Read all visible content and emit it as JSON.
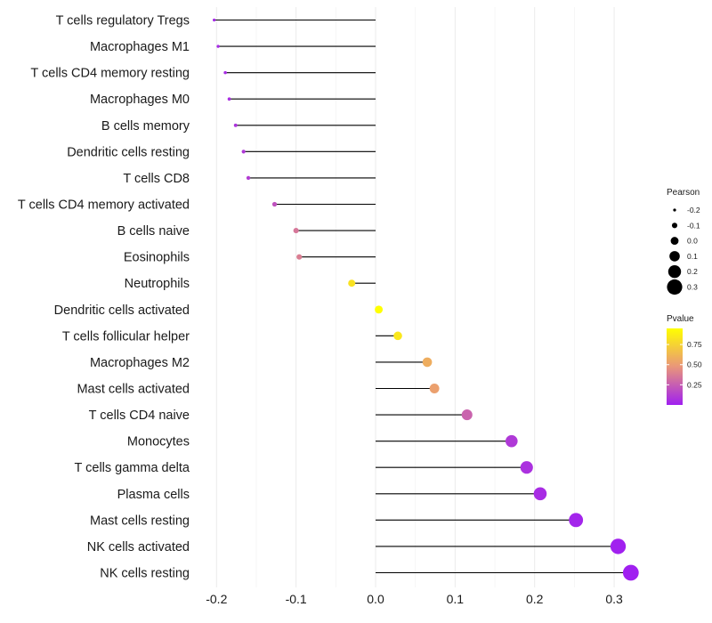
{
  "chart_data": {
    "type": "lollipop",
    "title": "",
    "xlabel": "",
    "ylabel": "",
    "xlim": [
      -0.22,
      0.355
    ],
    "x_ticks": [
      -0.2,
      -0.1,
      0.0,
      0.1,
      0.2,
      0.3
    ],
    "x_tick_labels": [
      "-0.2",
      "-0.1",
      "0.0",
      "0.1",
      "0.2",
      "0.3"
    ],
    "grid": true,
    "points": [
      {
        "category": "T cells regulatory  Tregs",
        "pearson": -0.203,
        "pvalue": 0.03
      },
      {
        "category": "Macrophages M1",
        "pearson": -0.198,
        "pvalue": 0.04
      },
      {
        "category": "T cells CD4 memory resting",
        "pearson": -0.189,
        "pvalue": 0.05
      },
      {
        "category": "Macrophages M0",
        "pearson": -0.184,
        "pvalue": 0.06
      },
      {
        "category": "B cells memory",
        "pearson": -0.176,
        "pvalue": 0.08
      },
      {
        "category": "Dendritic cells resting",
        "pearson": -0.166,
        "pvalue": 0.1
      },
      {
        "category": "T cells CD8",
        "pearson": -0.16,
        "pvalue": 0.12
      },
      {
        "category": "T cells CD4 memory activated",
        "pearson": -0.127,
        "pvalue": 0.2
      },
      {
        "category": "B cells naive",
        "pearson": -0.1,
        "pvalue": 0.35
      },
      {
        "category": "Eosinophils",
        "pearson": -0.096,
        "pvalue": 0.38
      },
      {
        "category": "Neutrophils",
        "pearson": -0.03,
        "pvalue": 0.82
      },
      {
        "category": "Dendritic cells activated",
        "pearson": 0.004,
        "pvalue": 0.97
      },
      {
        "category": "T cells follicular helper",
        "pearson": 0.028,
        "pvalue": 0.84
      },
      {
        "category": "Macrophages M2",
        "pearson": 0.065,
        "pvalue": 0.58
      },
      {
        "category": "Mast cells activated",
        "pearson": 0.074,
        "pvalue": 0.52
      },
      {
        "category": "T cells CD4 naive",
        "pearson": 0.115,
        "pvalue": 0.27
      },
      {
        "category": "Monocytes",
        "pearson": 0.171,
        "pvalue": 0.1
      },
      {
        "category": "T cells gamma delta",
        "pearson": 0.19,
        "pvalue": 0.07
      },
      {
        "category": "Plasma cells",
        "pearson": 0.207,
        "pvalue": 0.05
      },
      {
        "category": "Mast cells resting",
        "pearson": 0.252,
        "pvalue": 0.02
      },
      {
        "category": "NK cells activated",
        "pearson": 0.305,
        "pvalue": 0.005
      },
      {
        "category": "NK cells resting",
        "pearson": 0.321,
        "pvalue": 0.002
      }
    ],
    "size_legend": {
      "title": "Pearson",
      "entries": [
        {
          "label": "-0.2",
          "value": -0.2
        },
        {
          "label": "-0.1",
          "value": -0.1
        },
        {
          "label": "0.0",
          "value": 0.0
        },
        {
          "label": "0.1",
          "value": 0.1
        },
        {
          "label": "0.2",
          "value": 0.2
        },
        {
          "label": "0.3",
          "value": 0.3
        }
      ]
    },
    "color_legend": {
      "title": "Pvalue",
      "range": [
        0.0,
        0.95
      ],
      "ticks": [
        {
          "label": "0.75",
          "value": 0.75
        },
        {
          "label": "0.50",
          "value": 0.5
        },
        {
          "label": "0.25",
          "value": 0.25
        }
      ],
      "colors": {
        "low": "#a020f0",
        "mid": "#e9967a",
        "high": "#ffff00"
      }
    },
    "colors": {
      "stem": "#000000",
      "grid": "#ebebeb"
    }
  }
}
